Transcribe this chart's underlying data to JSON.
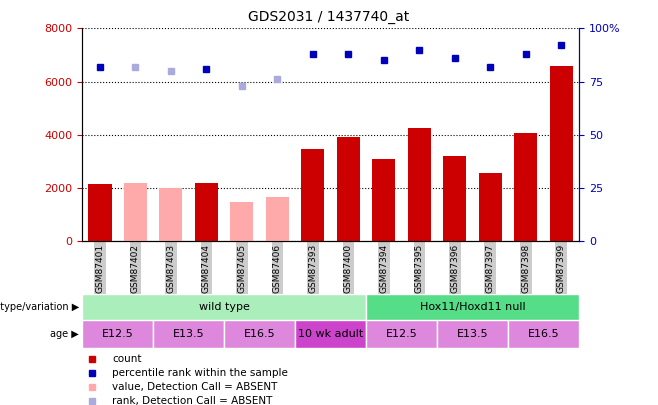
{
  "title": "GDS2031 / 1437740_at",
  "samples": [
    "GSM87401",
    "GSM87402",
    "GSM87403",
    "GSM87404",
    "GSM87405",
    "GSM87406",
    "GSM87393",
    "GSM87400",
    "GSM87394",
    "GSM87395",
    "GSM87396",
    "GSM87397",
    "GSM87398",
    "GSM87399"
  ],
  "count_values": [
    2150,
    null,
    null,
    2200,
    null,
    null,
    3450,
    3900,
    3100,
    4250,
    3200,
    2550,
    4050,
    6600
  ],
  "count_absent": [
    null,
    2200,
    2000,
    null,
    1450,
    1650,
    null,
    null,
    null,
    null,
    null,
    null,
    null,
    null
  ],
  "rank_values": [
    82,
    null,
    null,
    81,
    null,
    null,
    88,
    88,
    85,
    90,
    86,
    82,
    88,
    92
  ],
  "rank_absent": [
    null,
    82,
    80,
    null,
    73,
    76,
    null,
    null,
    null,
    null,
    null,
    null,
    null,
    null
  ],
  "ylim_left": [
    0,
    8000
  ],
  "ylim_right": [
    0,
    100
  ],
  "yticks_left": [
    0,
    2000,
    4000,
    6000,
    8000
  ],
  "yticks_right": [
    0,
    25,
    50,
    75,
    100
  ],
  "bar_color_present": "#cc0000",
  "bar_color_absent": "#ffaaaa",
  "dot_color_present": "#0000bb",
  "dot_color_absent": "#aaaadd",
  "bg_color": "#ffffff",
  "plot_bg_color": "#ffffff",
  "genotype_groups": [
    {
      "label": "wild type",
      "start": 0,
      "end": 8,
      "color": "#aaeebb"
    },
    {
      "label": "Hox11/Hoxd11 null",
      "start": 8,
      "end": 14,
      "color": "#55dd88"
    }
  ],
  "age_groups": [
    {
      "label": "E12.5",
      "start": 0,
      "end": 2,
      "color": "#dd88dd"
    },
    {
      "label": "E13.5",
      "start": 2,
      "end": 4,
      "color": "#dd88dd"
    },
    {
      "label": "E16.5",
      "start": 4,
      "end": 6,
      "color": "#dd88dd"
    },
    {
      "label": "10 wk adult",
      "start": 6,
      "end": 8,
      "color": "#cc44cc"
    },
    {
      "label": "E12.5",
      "start": 8,
      "end": 10,
      "color": "#dd88dd"
    },
    {
      "label": "E13.5",
      "start": 10,
      "end": 12,
      "color": "#dd88dd"
    },
    {
      "label": "E16.5",
      "start": 12,
      "end": 14,
      "color": "#dd88dd"
    }
  ],
  "legend_items": [
    {
      "label": "count",
      "color": "#cc0000"
    },
    {
      "label": "percentile rank within the sample",
      "color": "#0000bb"
    },
    {
      "label": "value, Detection Call = ABSENT",
      "color": "#ffaaaa"
    },
    {
      "label": "rank, Detection Call = ABSENT",
      "color": "#aaaadd"
    }
  ],
  "grid_color": "#000000",
  "tick_color_left": "#cc0000",
  "tick_color_right": "#0000bb",
  "xticklabel_bg": "#cccccc"
}
